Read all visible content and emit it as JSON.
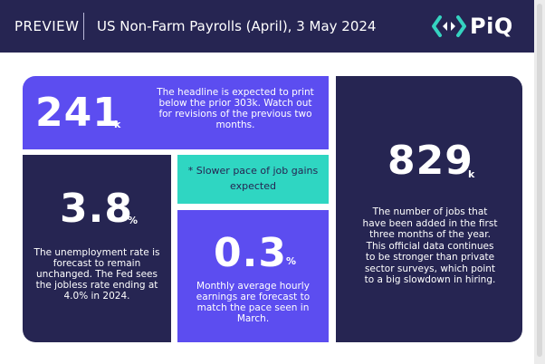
{
  "header": {
    "preview_label": "PREVIEW",
    "title": "US Non-Farm Payrolls (April), 3 May 2024",
    "logo_text": "PiQ",
    "logo_icon": "bracket-arrows-icon"
  },
  "colors": {
    "navy": "#262552",
    "purple": "#5c4df0",
    "teal": "#2fd6c2",
    "logo_teal": "#35d3c0"
  },
  "blocks": {
    "headline_jobs": {
      "value": "241",
      "unit": "k",
      "text": "The headline is expected to print below the prior 303k. Watch out for revisions of the previous two months."
    },
    "unemployment": {
      "value": "3.8",
      "unit": "%",
      "text": "The unemployment rate is forecast to remain unchanged. The Fed sees the jobless rate ending at 4.0% in 2024."
    },
    "note": {
      "text": "* Slower pace of job gains expected"
    },
    "earnings": {
      "value": "0.3",
      "unit": "%",
      "text": "Monthly average hourly earnings are forecast to match the pace seen in March."
    },
    "jobs_added": {
      "value": "829",
      "unit": "k",
      "text": "The number of jobs that have been added in the first three months of the year. This official data continues to be stronger than private sector surveys, which point to a big slowdown in hiring."
    }
  }
}
